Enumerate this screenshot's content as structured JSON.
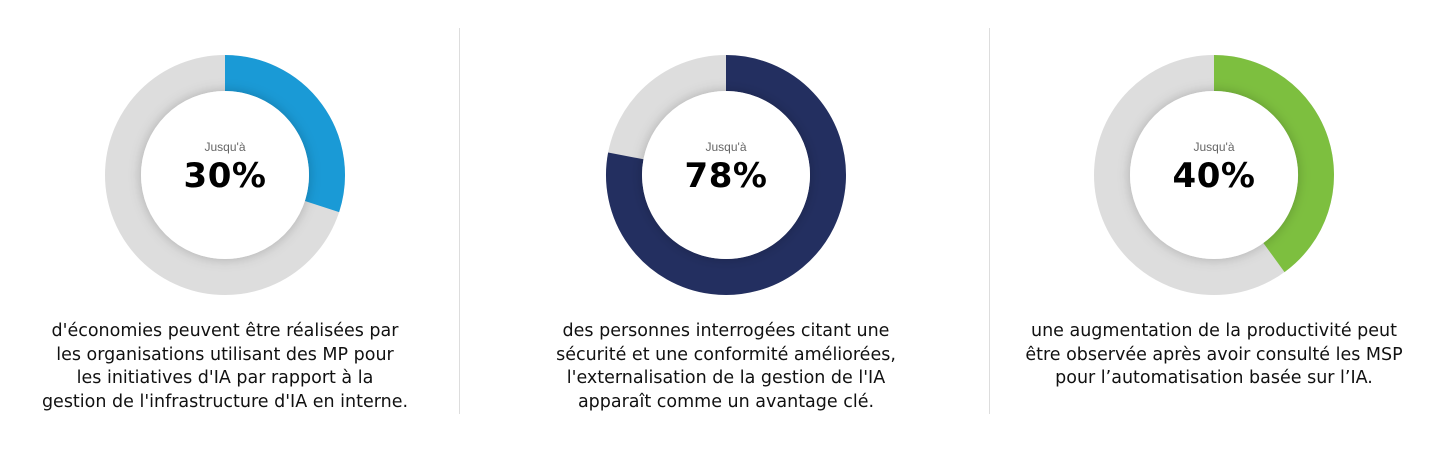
{
  "chart_data": [
    {
      "type": "pie",
      "variant": "donut",
      "prefix": "Jusqu'à",
      "value": 30,
      "value_label": "30%",
      "color": "#1a9ad6",
      "track_color": "#dddddd",
      "caption": [
        "d'économies peuvent être réalisées par",
        "les organisations utilisant des MP pour",
        "les initiatives d'IA par rapport à la",
        "gestion de l'infrastructure d'IA en interne."
      ]
    },
    {
      "type": "pie",
      "variant": "donut",
      "prefix": "Jusqu'à",
      "value": 78,
      "value_label": "78%",
      "color": "#232f60",
      "track_color": "#dddddd",
      "caption": [
        "des personnes interrogées citant une",
        "sécurité et une conformité améliorées,",
        "l'externalisation de la gestion de l'IA",
        "apparaît comme un avantage clé."
      ]
    },
    {
      "type": "pie",
      "variant": "donut",
      "prefix": "Jusqu'à",
      "value": 40,
      "value_label": "40%",
      "color": "#7dbf3f",
      "track_color": "#dddddd",
      "caption": [
        "une augmentation de la productivité peut",
        "être observée après avoir consulté les MSP",
        "pour l’automatisation basée sur l’IA."
      ]
    }
  ]
}
